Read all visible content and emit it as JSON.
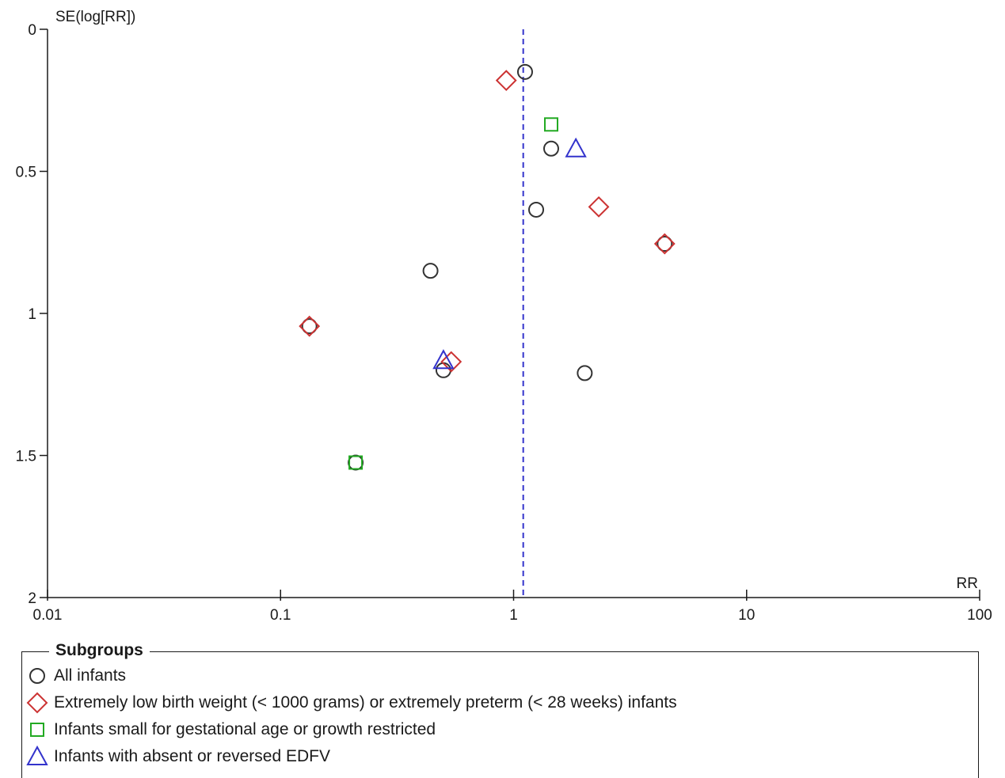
{
  "chart_data": {
    "type": "scatter",
    "title": "",
    "x_scale": "log",
    "x_label": "RR",
    "y_label": "SE(log[RR])",
    "xlim": [
      0.01,
      100
    ],
    "ylim": [
      0,
      2
    ],
    "y_inverted": true,
    "x_ticks": [
      {
        "value": 0.01,
        "label": "0.01"
      },
      {
        "value": 0.1,
        "label": "0.1"
      },
      {
        "value": 1,
        "label": "1"
      },
      {
        "value": 10,
        "label": "10"
      },
      {
        "value": 100,
        "label": "100"
      }
    ],
    "y_ticks": [
      {
        "value": 0,
        "label": "0"
      },
      {
        "value": 0.5,
        "label": "0.5"
      },
      {
        "value": 1,
        "label": "1"
      },
      {
        "value": 1.5,
        "label": "1.5"
      },
      {
        "value": 2,
        "label": "2"
      }
    ],
    "reference_line": {
      "x": 1.1,
      "style": "dashed",
      "color": "#3333cc"
    },
    "legend": {
      "title": "Subgroups",
      "placement": "bottom"
    },
    "series": [
      {
        "name": "All infants",
        "marker": "circle",
        "color": "#333333",
        "points": [
          [
            1.12,
            0.15
          ],
          [
            1.45,
            0.42
          ],
          [
            1.25,
            0.635
          ],
          [
            0.44,
            0.85
          ],
          [
            0.133,
            1.045
          ],
          [
            0.5,
            1.2
          ],
          [
            2.02,
            1.21
          ],
          [
            0.21,
            1.525
          ],
          [
            4.45,
            0.755
          ]
        ]
      },
      {
        "name": "Extremely low birth weight (< 1000 grams) or extremely preterm (< 28 weeks) infants",
        "marker": "diamond",
        "color": "#cc3333",
        "points": [
          [
            0.93,
            0.18
          ],
          [
            2.32,
            0.625
          ],
          [
            4.45,
            0.755
          ],
          [
            0.133,
            1.045
          ],
          [
            0.54,
            1.17
          ]
        ]
      },
      {
        "name": "Infants small for gestational age or growth restricted",
        "marker": "square",
        "color": "#22aa22",
        "points": [
          [
            1.45,
            0.335
          ],
          [
            0.21,
            1.525
          ]
        ]
      },
      {
        "name": "Infants with absent or reversed EDFV",
        "marker": "triangle",
        "color": "#3333cc",
        "points": [
          [
            1.85,
            0.42
          ],
          [
            0.5,
            1.165
          ]
        ]
      }
    ]
  }
}
